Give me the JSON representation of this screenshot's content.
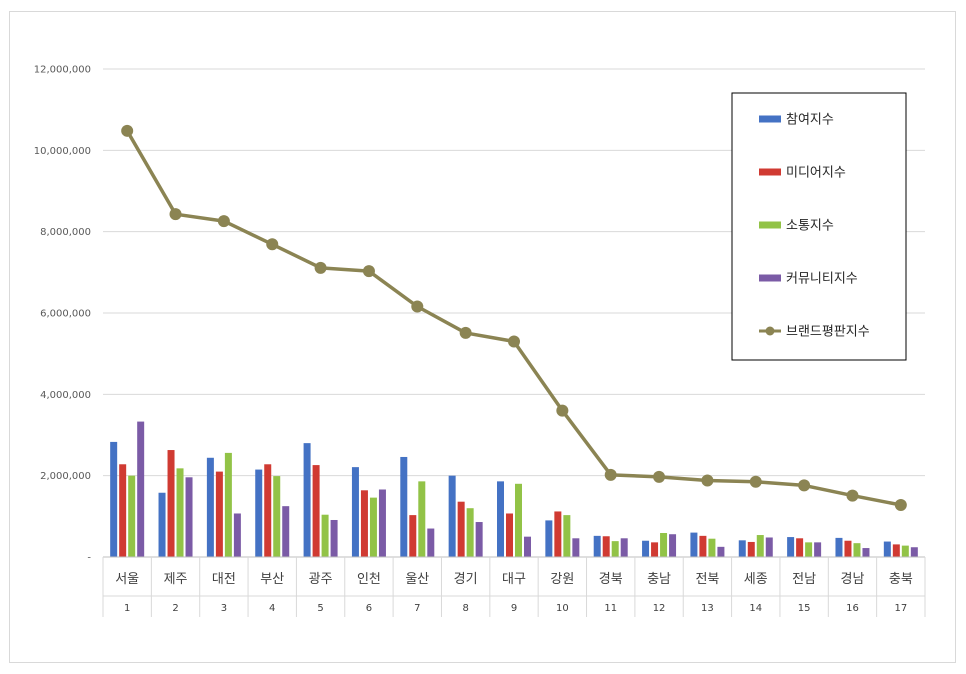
{
  "chart_data": {
    "type": "bar",
    "categories": [
      "서울",
      "제주",
      "대전",
      "부산",
      "광주",
      "인천",
      "울산",
      "경기",
      "대구",
      "강원",
      "경북",
      "충남",
      "전북",
      "세종",
      "전남",
      "경남",
      "충북"
    ],
    "ranks": [
      "1",
      "2",
      "3",
      "4",
      "5",
      "6",
      "7",
      "8",
      "9",
      "10",
      "11",
      "12",
      "13",
      "14",
      "15",
      "16",
      "17"
    ],
    "ylim": [
      0,
      12000000
    ],
    "y_ticks": [
      {
        "value": 0,
        "label": "-"
      },
      {
        "value": 2000000,
        "label": "2,000,000"
      },
      {
        "value": 4000000,
        "label": "4,000,000"
      },
      {
        "value": 6000000,
        "label": "6,000,000"
      },
      {
        "value": 8000000,
        "label": "8,000,000"
      },
      {
        "value": 10000000,
        "label": "10,000,000"
      },
      {
        "value": 12000000,
        "label": "12,000,000"
      }
    ],
    "grid": true,
    "legend_position": "right",
    "series": [
      {
        "name": "참여지수",
        "kind": "bar",
        "color": "#4472C4",
        "values": [
          2830000,
          1580000,
          2440000,
          2150000,
          2800000,
          2210000,
          2460000,
          2000000,
          1860000,
          900000,
          520000,
          400000,
          600000,
          410000,
          490000,
          470000,
          380000
        ]
      },
      {
        "name": "미디어지수",
        "kind": "bar",
        "color": "#D03A32",
        "values": [
          2280000,
          2630000,
          2100000,
          2280000,
          2260000,
          1640000,
          1030000,
          1360000,
          1070000,
          1120000,
          510000,
          360000,
          520000,
          370000,
          460000,
          400000,
          310000
        ]
      },
      {
        "name": "소통지수",
        "kind": "bar",
        "color": "#92C347",
        "values": [
          2000000,
          2180000,
          2560000,
          1990000,
          1040000,
          1460000,
          1860000,
          1200000,
          1800000,
          1030000,
          390000,
          590000,
          450000,
          540000,
          360000,
          340000,
          280000
        ]
      },
      {
        "name": "커뮤니티지수",
        "kind": "bar",
        "color": "#7B5BA6",
        "values": [
          3330000,
          1960000,
          1070000,
          1250000,
          910000,
          1660000,
          700000,
          860000,
          500000,
          460000,
          460000,
          560000,
          250000,
          480000,
          360000,
          220000,
          240000
        ]
      },
      {
        "name": "브랜드평판지수",
        "kind": "line",
        "color": "#8B8453",
        "values": [
          10480000,
          8430000,
          8260000,
          7690000,
          7110000,
          7030000,
          6160000,
          5510000,
          5300000,
          3600000,
          2020000,
          1970000,
          1880000,
          1850000,
          1760000,
          1510000,
          1280000
        ]
      }
    ]
  }
}
